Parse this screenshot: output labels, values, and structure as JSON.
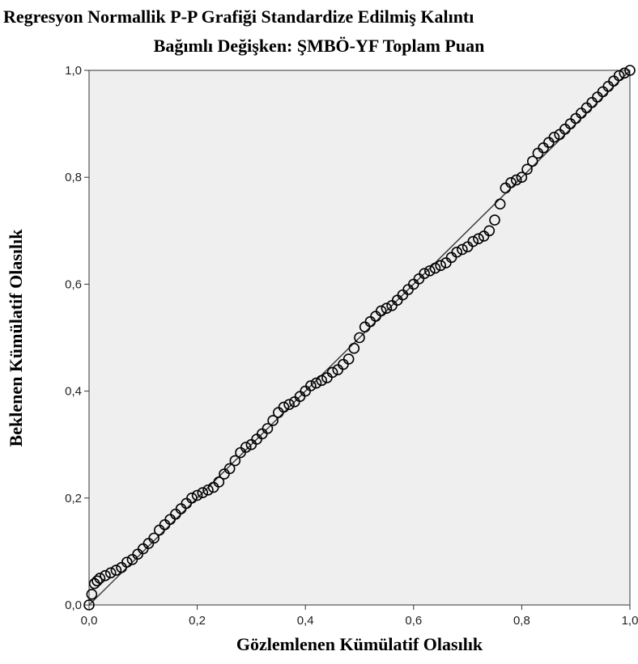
{
  "chart_data": {
    "type": "scatter",
    "title": "Regresyon Normallik P-P Grafiği Standardize Edilmiş Kalıntı",
    "subtitle": "Bağımlı Değişken: ŞMBÖ-YF Toplam Puan",
    "xlabel": "Gözlemlenen Kümülatif Olasılık",
    "ylabel": "Beklenen Kümülatif Olasılık",
    "xlim": [
      0,
      1
    ],
    "ylim": [
      0,
      1
    ],
    "xticks": [
      "0,0",
      "0,2",
      "0,4",
      "0,6",
      "0,8",
      "1,0"
    ],
    "yticks": [
      "0,0",
      "0,2",
      "0,4",
      "0,6",
      "0,8",
      "1,0"
    ],
    "grid": false,
    "reference_line": [
      [
        0,
        0
      ],
      [
        1,
        1
      ]
    ],
    "colors": {
      "plot_background": "#efefef",
      "points": "#000000",
      "reference_line": "#333333"
    },
    "series": [
      {
        "x": [
          0.0,
          0.005,
          0.01,
          0.015,
          0.02,
          0.03,
          0.04,
          0.05,
          0.06,
          0.07,
          0.08,
          0.09,
          0.1,
          0.11,
          0.12,
          0.13,
          0.14,
          0.15,
          0.16,
          0.17,
          0.18,
          0.19,
          0.2,
          0.21,
          0.22,
          0.23,
          0.24,
          0.25,
          0.26,
          0.27,
          0.28,
          0.29,
          0.3,
          0.31,
          0.32,
          0.33,
          0.34,
          0.35,
          0.36,
          0.37,
          0.38,
          0.39,
          0.4,
          0.41,
          0.42,
          0.43,
          0.44,
          0.45,
          0.46,
          0.47,
          0.48,
          0.49,
          0.5,
          0.51,
          0.52,
          0.53,
          0.54,
          0.55,
          0.56,
          0.57,
          0.58,
          0.59,
          0.6,
          0.61,
          0.62,
          0.63,
          0.64,
          0.65,
          0.66,
          0.67,
          0.68,
          0.69,
          0.7,
          0.71,
          0.72,
          0.73,
          0.74,
          0.75,
          0.76,
          0.77,
          0.78,
          0.79,
          0.8,
          0.81,
          0.82,
          0.83,
          0.84,
          0.85,
          0.86,
          0.87,
          0.88,
          0.89,
          0.9,
          0.91,
          0.92,
          0.93,
          0.94,
          0.95,
          0.96,
          0.97,
          0.98,
          0.99,
          1.0
        ],
        "y": [
          0.0,
          0.02,
          0.04,
          0.045,
          0.05,
          0.055,
          0.06,
          0.065,
          0.07,
          0.08,
          0.085,
          0.095,
          0.105,
          0.115,
          0.125,
          0.14,
          0.15,
          0.16,
          0.17,
          0.18,
          0.19,
          0.2,
          0.205,
          0.21,
          0.215,
          0.22,
          0.23,
          0.245,
          0.255,
          0.27,
          0.285,
          0.295,
          0.3,
          0.31,
          0.32,
          0.33,
          0.345,
          0.36,
          0.37,
          0.375,
          0.38,
          0.39,
          0.4,
          0.41,
          0.415,
          0.42,
          0.425,
          0.435,
          0.44,
          0.45,
          0.46,
          0.48,
          0.5,
          0.52,
          0.53,
          0.54,
          0.55,
          0.555,
          0.56,
          0.57,
          0.58,
          0.59,
          0.6,
          0.61,
          0.62,
          0.625,
          0.63,
          0.635,
          0.64,
          0.65,
          0.66,
          0.665,
          0.67,
          0.68,
          0.685,
          0.69,
          0.7,
          0.72,
          0.75,
          0.78,
          0.79,
          0.795,
          0.8,
          0.815,
          0.83,
          0.845,
          0.855,
          0.865,
          0.875,
          0.88,
          0.89,
          0.9,
          0.91,
          0.92,
          0.93,
          0.94,
          0.95,
          0.96,
          0.97,
          0.98,
          0.99,
          0.995,
          1.0
        ]
      }
    ]
  }
}
